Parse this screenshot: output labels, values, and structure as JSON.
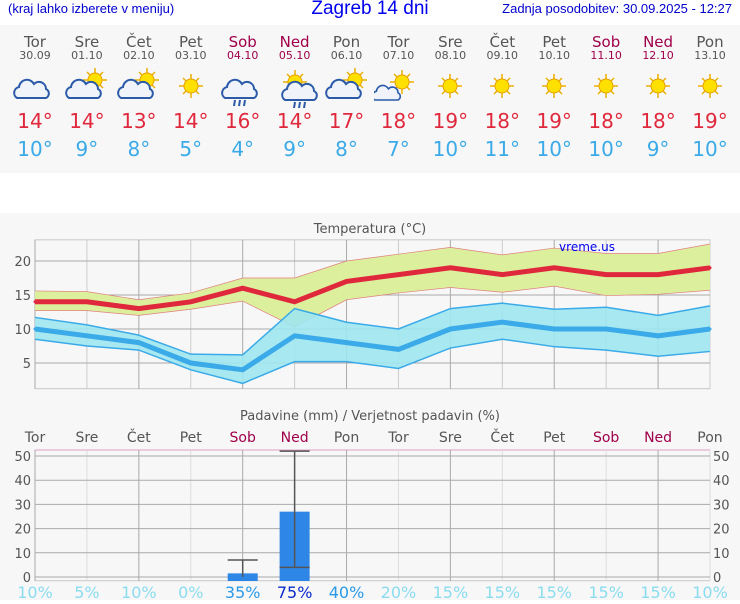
{
  "header": {
    "hint": "(kraj lahko izberete v meniju)",
    "title": "Zagreb 14 dni",
    "updated": "Zadnja posodobitev: 30.09.2025 - 12:27"
  },
  "days": [
    {
      "name": "Tor",
      "date": "30.09",
      "icon": "cloudy-icon",
      "max": "14°",
      "min": "10°",
      "weekend": false
    },
    {
      "name": "Sre",
      "date": "01.10",
      "icon": "partly-cloudy-icon",
      "max": "14°",
      "min": "9°",
      "weekend": false
    },
    {
      "name": "Čet",
      "date": "02.10",
      "icon": "partly-cloudy-icon",
      "max": "13°",
      "min": "8°",
      "weekend": false
    },
    {
      "name": "Pet",
      "date": "03.10",
      "icon": "sun-icon",
      "max": "14°",
      "min": "5°",
      "weekend": false
    },
    {
      "name": "Sob",
      "date": "04.10",
      "icon": "rain-cloud-icon",
      "max": "16°",
      "min": "4°",
      "weekend": true
    },
    {
      "name": "Ned",
      "date": "05.10",
      "icon": "sun-rain-icon",
      "max": "14°",
      "min": "9°",
      "weekend": true
    },
    {
      "name": "Pon",
      "date": "06.10",
      "icon": "partly-cloudy-icon",
      "max": "17°",
      "min": "8°",
      "weekend": false
    },
    {
      "name": "Tor",
      "date": "07.10",
      "icon": "sun-cloud-icon",
      "max": "18°",
      "min": "7°",
      "weekend": false
    },
    {
      "name": "Sre",
      "date": "08.10",
      "icon": "sun-icon",
      "max": "19°",
      "min": "10°",
      "weekend": false
    },
    {
      "name": "Čet",
      "date": "09.10",
      "icon": "sun-icon",
      "max": "18°",
      "min": "11°",
      "weekend": false
    },
    {
      "name": "Pet",
      "date": "10.10",
      "icon": "sun-icon",
      "max": "19°",
      "min": "10°",
      "weekend": false
    },
    {
      "name": "Sob",
      "date": "11.10",
      "icon": "sun-icon",
      "max": "18°",
      "min": "10°",
      "weekend": true
    },
    {
      "name": "Ned",
      "date": "12.10",
      "icon": "sun-icon",
      "max": "18°",
      "min": "9°",
      "weekend": true
    },
    {
      "name": "Pon",
      "date": "13.10",
      "icon": "sun-icon",
      "max": "19°",
      "min": "10°",
      "weekend": false
    }
  ],
  "colors": {
    "max": "#e0283c",
    "min": "#3aaae8",
    "max_band": "#dcef9c",
    "min_band": "#9ee6f0",
    "bar": "#2e86e6",
    "weekend": "#a0004a"
  },
  "chart_data": [
    {
      "type": "line",
      "title": "Temperatura (°C)",
      "watermark": "vreme.us",
      "yticks": [
        5,
        10,
        15,
        20
      ],
      "ylim": [
        1.2,
        23.1
      ],
      "grid": true,
      "categories": [
        "Tor",
        "Sre",
        "Čet",
        "Pet",
        "Sob",
        "Ned",
        "Pon",
        "Tor",
        "Sre",
        "Čet",
        "Pet",
        "Sob",
        "Ned",
        "Pon"
      ],
      "series": [
        {
          "values": [
            14,
            14,
            13,
            14,
            16,
            14,
            17,
            18,
            19,
            18,
            19,
            18,
            18,
            19
          ],
          "upper": [
            15.6,
            15.5,
            14.3,
            15.3,
            17.5,
            17.5,
            20,
            21,
            22,
            20.9,
            21.9,
            21.1,
            21.1,
            22.5
          ],
          "lower": [
            12.7,
            12.7,
            12,
            12.9,
            14.1,
            10.3,
            14.3,
            15.3,
            16.1,
            15.4,
            16.3,
            14.9,
            15.1,
            15.7
          ]
        },
        {
          "values": [
            10,
            9,
            8,
            5,
            4,
            9,
            8,
            7,
            10,
            11,
            10,
            10,
            9,
            10
          ],
          "upper": [
            11.7,
            10.6,
            9.1,
            6.3,
            6.2,
            13,
            11,
            10,
            13,
            13.8,
            12.9,
            13.2,
            12,
            13.4
          ],
          "lower": [
            8.5,
            7.5,
            6.9,
            4,
            2,
            5.2,
            5.2,
            4.2,
            7.2,
            8.5,
            7.4,
            6.9,
            6,
            6.7
          ]
        }
      ]
    },
    {
      "type": "bar",
      "title": "Padavine (mm) / Verjetnost padavin (%)",
      "yticks": [
        0,
        10,
        20,
        30,
        40,
        50
      ],
      "ylim": [
        -5,
        54
      ],
      "grid": true,
      "categories": [
        "Tor",
        "Sre",
        "Čet",
        "Pet",
        "Sob",
        "Ned",
        "Pon",
        "Tor",
        "Sre",
        "Čet",
        "Pet",
        "Sob",
        "Ned",
        "Pon"
      ],
      "values": [
        0,
        0,
        0,
        0,
        1.5,
        27,
        0,
        0,
        0,
        0,
        0,
        0,
        0,
        0
      ],
      "error_low": [
        null,
        null,
        null,
        null,
        0,
        4,
        null,
        null,
        null,
        null,
        null,
        null,
        null,
        null
      ],
      "error_high": [
        null,
        null,
        null,
        null,
        7,
        52,
        null,
        null,
        null,
        null,
        null,
        null,
        null,
        null
      ],
      "probability": [
        "10%",
        "5%",
        "10%",
        "0%",
        "35%",
        "75%",
        "40%",
        "20%",
        "15%",
        "15%",
        "15%",
        "15%",
        "15%",
        "10%"
      ]
    }
  ]
}
